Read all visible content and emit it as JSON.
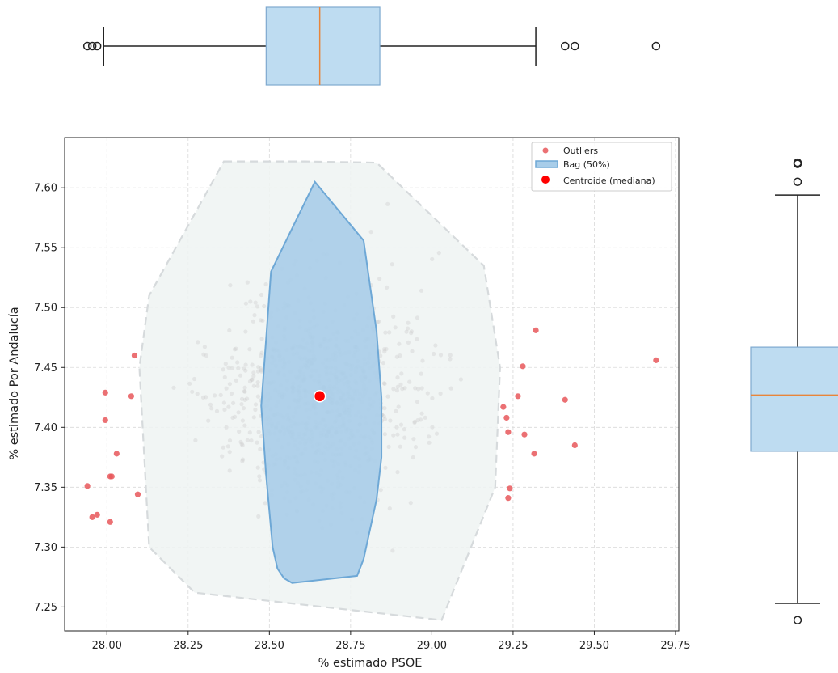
{
  "chart_data": {
    "type": "scatter",
    "variant": "bagplot with marginal boxplots",
    "xlabel": "% estimado PSOE",
    "ylabel": "% estimado Por Andalucía",
    "xlim": [
      27.87,
      29.76
    ],
    "ylim": [
      7.23,
      7.642
    ],
    "xticks": [
      "28.00",
      "28.25",
      "28.50",
      "28.75",
      "29.00",
      "29.25",
      "29.50",
      "29.75"
    ],
    "yticks": [
      "7.25",
      "7.30",
      "7.35",
      "7.40",
      "7.45",
      "7.50",
      "7.55",
      "7.60"
    ],
    "grid": true,
    "legend": {
      "placement": "top-right",
      "entries": [
        {
          "label": "Outliers",
          "marker": "dot",
          "color": "#e8575a"
        },
        {
          "label": "Bag (50%)",
          "marker": "patch",
          "color": "#7fb6e0"
        },
        {
          "label": "Centroide (mediana)",
          "marker": "dot",
          "color": "#ff0000"
        }
      ]
    },
    "colors": {
      "outlier": "#e8575a",
      "bag_fill": "#a8cde9",
      "bag_edge": "#6ea8d6",
      "fence_fill": "#eef3f2",
      "fence_edge": "#d6dadc",
      "centroid": "#ff0000",
      "inlier": "#c8c8c8",
      "box_fill": "#bedcf1",
      "box_edge": "#7ea9cf",
      "median_line": "#e8853a"
    },
    "centroid": {
      "x": 28.655,
      "y": 7.426
    },
    "bag": [
      [
        28.64,
        7.605
      ],
      [
        28.79,
        7.556
      ],
      [
        28.83,
        7.48
      ],
      [
        28.845,
        7.425
      ],
      [
        28.845,
        7.375
      ],
      [
        28.83,
        7.34
      ],
      [
        28.79,
        7.29
      ],
      [
        28.77,
        7.276
      ],
      [
        28.57,
        7.27
      ],
      [
        28.545,
        7.274
      ],
      [
        28.525,
        7.282
      ],
      [
        28.51,
        7.3
      ],
      [
        28.49,
        7.36
      ],
      [
        28.475,
        7.418
      ],
      [
        28.505,
        7.53
      ]
    ],
    "fence": [
      [
        28.36,
        7.622
      ],
      [
        28.61,
        7.622
      ],
      [
        28.83,
        7.621
      ],
      [
        29.16,
        7.535
      ],
      [
        29.21,
        7.45
      ],
      [
        29.195,
        7.35
      ],
      [
        29.03,
        7.239
      ],
      [
        28.27,
        7.262
      ],
      [
        28.13,
        7.3
      ],
      [
        28.1,
        7.45
      ],
      [
        28.13,
        7.51
      ]
    ],
    "outliers": [
      {
        "x": 27.94,
        "y": 7.351
      },
      {
        "x": 27.955,
        "y": 7.325
      },
      {
        "x": 27.97,
        "y": 7.327
      },
      {
        "x": 27.995,
        "y": 7.429
      },
      {
        "x": 27.995,
        "y": 7.406
      },
      {
        "x": 28.01,
        "y": 7.359
      },
      {
        "x": 28.015,
        "y": 7.359
      },
      {
        "x": 28.01,
        "y": 7.321
      },
      {
        "x": 28.03,
        "y": 7.378
      },
      {
        "x": 28.075,
        "y": 7.426
      },
      {
        "x": 28.085,
        "y": 7.46
      },
      {
        "x": 28.095,
        "y": 7.344
      },
      {
        "x": 29.22,
        "y": 7.417
      },
      {
        "x": 29.23,
        "y": 7.408
      },
      {
        "x": 29.235,
        "y": 7.396
      },
      {
        "x": 29.235,
        "y": 7.341
      },
      {
        "x": 29.24,
        "y": 7.349
      },
      {
        "x": 29.265,
        "y": 7.426
      },
      {
        "x": 29.28,
        "y": 7.451
      },
      {
        "x": 29.285,
        "y": 7.394
      },
      {
        "x": 29.315,
        "y": 7.378
      },
      {
        "x": 29.32,
        "y": 7.481
      },
      {
        "x": 29.41,
        "y": 7.423
      },
      {
        "x": 29.44,
        "y": 7.385
      },
      {
        "x": 29.69,
        "y": 7.456
      }
    ],
    "boxplot_x": {
      "whisker_low": 27.99,
      "q1": 28.49,
      "median": 28.655,
      "q3": 28.84,
      "whisker_high": 29.32,
      "fliers": [
        27.94,
        27.955,
        27.97,
        29.41,
        29.44,
        29.69
      ]
    },
    "boxplot_y": {
      "whisker_low": 7.253,
      "q1": 7.38,
      "median": 7.427,
      "q3": 7.467,
      "whisker_high": 7.594,
      "fliers": [
        7.239,
        7.605,
        7.62,
        7.621
      ]
    }
  }
}
